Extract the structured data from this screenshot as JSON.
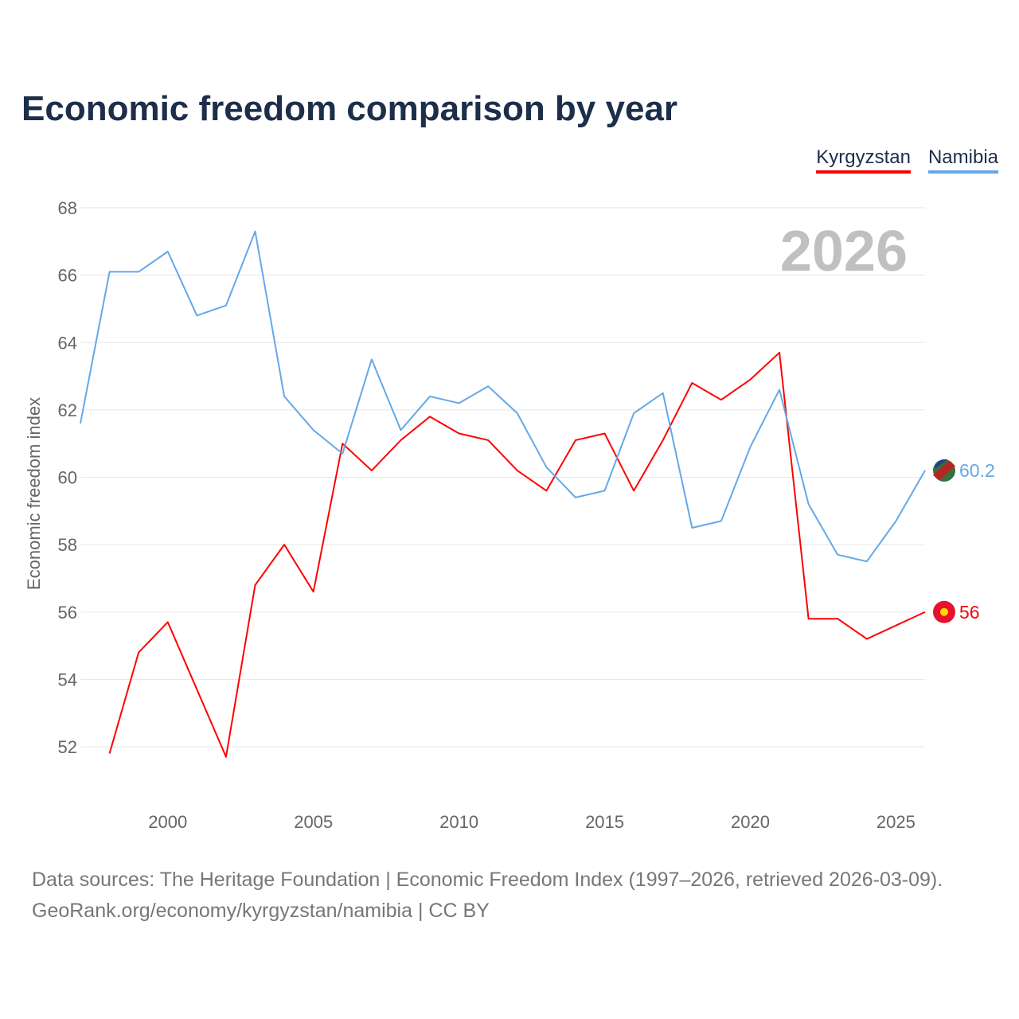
{
  "title": "Economic freedom comparison by year",
  "footer": {
    "line1": "Data sources: The Heritage Foundation | Economic Freedom Index (1997–2026, retrieved 2026-03-09).",
    "line2": "GeoRank.org/economy/kyrgyzstan/namibia | CC BY"
  },
  "chart_data": {
    "type": "line",
    "title": "Economic freedom comparison by year",
    "xlabel": "",
    "ylabel": "Economic freedom index",
    "year_label": "2026",
    "xlim": [
      1997,
      2026
    ],
    "ylim": [
      50.5,
      68
    ],
    "xticks": [
      2000,
      2005,
      2010,
      2015,
      2020,
      2025
    ],
    "yticks": [
      52,
      54,
      56,
      58,
      60,
      62,
      64,
      66,
      68
    ],
    "grid": true,
    "legend_placement": "top-right",
    "series": [
      {
        "name": "Kyrgyzstan",
        "color": "#ff0000",
        "end_label": "56",
        "x": [
          1998,
          1999,
          2000,
          2001,
          2002,
          2003,
          2004,
          2005,
          2006,
          2007,
          2008,
          2009,
          2010,
          2011,
          2012,
          2013,
          2014,
          2015,
          2016,
          2017,
          2018,
          2019,
          2020,
          2021,
          2022,
          2023,
          2024,
          2025,
          2026
        ],
        "values": [
          51.8,
          54.8,
          55.7,
          53.7,
          51.7,
          56.8,
          58.0,
          56.6,
          61.0,
          60.2,
          61.1,
          61.8,
          61.3,
          61.1,
          60.2,
          59.6,
          61.1,
          61.3,
          59.6,
          61.1,
          62.8,
          62.3,
          62.9,
          63.7,
          55.8,
          55.8,
          55.2,
          55.6,
          56.0
        ]
      },
      {
        "name": "Namibia",
        "color": "#64a8e8",
        "end_label": "60.2",
        "x": [
          1997,
          1998,
          1999,
          2000,
          2001,
          2002,
          2003,
          2004,
          2005,
          2006,
          2007,
          2008,
          2009,
          2010,
          2011,
          2012,
          2013,
          2014,
          2015,
          2016,
          2017,
          2018,
          2019,
          2020,
          2021,
          2022,
          2023,
          2024,
          2025,
          2026
        ],
        "values": [
          61.6,
          66.1,
          66.1,
          66.7,
          64.8,
          65.1,
          67.3,
          62.4,
          61.4,
          60.7,
          63.5,
          61.4,
          62.4,
          62.2,
          62.7,
          61.9,
          60.3,
          59.4,
          59.6,
          61.9,
          62.5,
          58.5,
          58.7,
          60.9,
          62.6,
          59.2,
          57.7,
          57.5,
          58.7,
          60.2
        ]
      }
    ]
  }
}
